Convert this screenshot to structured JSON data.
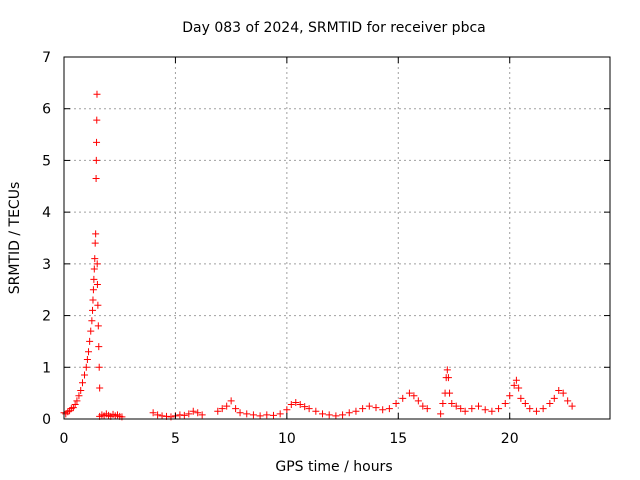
{
  "chart_data": {
    "type": "scatter",
    "title": "Day 083 of 2024, SRMTID for receiver pbca",
    "xlabel": "GPS time / hours",
    "ylabel": "SRMTID / TECUs",
    "xlim": [
      0,
      24.5
    ],
    "ylim": [
      0,
      7
    ],
    "x_ticks": [
      0,
      5,
      10,
      15,
      20
    ],
    "y_ticks": [
      0,
      1,
      2,
      3,
      4,
      5,
      6,
      7
    ],
    "grid": true,
    "marker": "plus",
    "marker_color": "#ff0000",
    "series": [
      {
        "x": [
          0.0,
          0.08,
          0.17,
          0.25,
          0.33,
          0.42,
          0.5,
          0.58,
          0.67,
          0.75,
          0.83,
          0.92,
          1.0,
          1.05,
          1.1,
          1.15,
          1.2,
          1.25,
          1.28,
          1.3,
          1.32,
          1.34,
          1.36,
          1.38,
          1.4,
          1.42,
          1.44,
          1.45,
          1.46,
          1.47,
          1.48,
          1.49,
          1.5,
          1.52,
          1.54,
          1.56,
          1.58,
          1.6,
          1.6,
          1.7,
          1.8,
          1.9,
          2.0,
          2.1,
          2.2,
          2.3,
          2.4,
          2.5,
          2.6,
          4.0,
          4.2,
          4.4,
          4.6,
          4.8,
          5.0,
          5.2,
          5.4,
          5.6,
          5.8,
          6.0,
          6.2,
          6.9,
          7.1,
          7.3,
          7.5,
          7.7,
          7.9,
          8.2,
          8.5,
          8.8,
          9.1,
          9.4,
          9.7,
          10.0,
          10.2,
          10.4,
          10.6,
          10.8,
          11.0,
          11.3,
          11.6,
          11.9,
          12.2,
          12.5,
          12.8,
          13.1,
          13.4,
          13.7,
          14.0,
          14.3,
          14.6,
          14.9,
          15.2,
          15.5,
          15.7,
          15.9,
          16.1,
          16.3,
          16.9,
          17.0,
          17.1,
          17.15,
          17.2,
          17.25,
          17.3,
          17.4,
          17.6,
          17.8,
          18.0,
          18.3,
          18.6,
          18.9,
          19.2,
          19.5,
          19.8,
          20.0,
          20.2,
          20.3,
          20.4,
          20.5,
          20.7,
          20.9,
          21.2,
          21.5,
          21.8,
          22.0,
          22.2,
          22.4,
          22.6,
          22.8
        ],
        "y": [
          0.12,
          0.1,
          0.14,
          0.16,
          0.2,
          0.22,
          0.28,
          0.35,
          0.45,
          0.55,
          0.7,
          0.85,
          1.0,
          1.15,
          1.3,
          1.5,
          1.7,
          1.9,
          2.1,
          2.3,
          2.5,
          2.7,
          2.9,
          3.1,
          3.4,
          3.58,
          4.65,
          5.0,
          5.35,
          5.78,
          6.28,
          3.0,
          2.6,
          2.2,
          1.8,
          1.4,
          1.0,
          0.6,
          0.05,
          0.08,
          0.06,
          0.1,
          0.07,
          0.05,
          0.09,
          0.06,
          0.08,
          0.05,
          0.04,
          0.12,
          0.08,
          0.06,
          0.05,
          0.04,
          0.06,
          0.08,
          0.07,
          0.1,
          0.15,
          0.12,
          0.08,
          0.15,
          0.2,
          0.25,
          0.35,
          0.2,
          0.12,
          0.1,
          0.08,
          0.06,
          0.08,
          0.07,
          0.1,
          0.18,
          0.28,
          0.32,
          0.28,
          0.24,
          0.2,
          0.15,
          0.1,
          0.08,
          0.06,
          0.08,
          0.12,
          0.15,
          0.2,
          0.25,
          0.22,
          0.18,
          0.2,
          0.3,
          0.4,
          0.5,
          0.45,
          0.35,
          0.25,
          0.2,
          0.1,
          0.3,
          0.5,
          0.8,
          0.95,
          0.8,
          0.5,
          0.3,
          0.25,
          0.2,
          0.15,
          0.2,
          0.25,
          0.18,
          0.15,
          0.2,
          0.3,
          0.45,
          0.65,
          0.75,
          0.6,
          0.4,
          0.3,
          0.2,
          0.15,
          0.2,
          0.3,
          0.4,
          0.55,
          0.5,
          0.35,
          0.25
        ]
      }
    ]
  }
}
